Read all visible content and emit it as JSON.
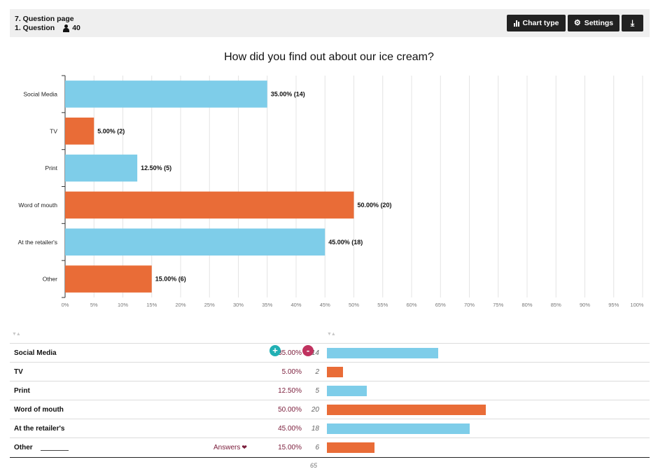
{
  "header": {
    "page_label": "7. Question page",
    "question_label": "1. Question",
    "respondents": "40",
    "buttons": {
      "chart_type": "Chart type",
      "settings": "Settings"
    }
  },
  "colors": {
    "blue": "#7ecde9",
    "orange": "#e96c37",
    "accent_pct": "#7a1c3a",
    "plus": "#21b0b4",
    "minus": "#c0325f"
  },
  "chart_data": {
    "type": "bar",
    "orientation": "horizontal",
    "title": "How did you find out about our ice cream?",
    "categories": [
      "Social Media",
      "TV",
      "Print",
      "Word of mouth",
      "At the retailer's",
      "Other"
    ],
    "values": [
      35,
      5,
      12.5,
      50,
      45,
      15
    ],
    "counts": [
      14,
      2,
      5,
      20,
      18,
      6
    ],
    "data_labels": [
      "35.00% (14)",
      "5.00% (2)",
      "12.50% (5)",
      "50.00% (20)",
      "45.00% (18)",
      "15.00% (6)"
    ],
    "bar_colors": [
      "blue",
      "orange",
      "blue",
      "orange",
      "blue",
      "orange"
    ],
    "xlim": [
      0,
      100
    ],
    "xticks": [
      "0%",
      "5%",
      "10%",
      "15%",
      "20%",
      "25%",
      "30%",
      "35%",
      "40%",
      "45%",
      "50%",
      "55%",
      "60%",
      "65%",
      "70%",
      "75%",
      "80%",
      "85%",
      "90%",
      "95%",
      "100%"
    ],
    "grid": true
  },
  "table": {
    "rows": [
      {
        "label": "Social Media",
        "pct": "35.00%",
        "count": "14",
        "value": 35
      },
      {
        "label": "TV",
        "pct": "5.00%",
        "count": "2",
        "value": 5
      },
      {
        "label": "Print",
        "pct": "12.50%",
        "count": "5",
        "value": 12.5
      },
      {
        "label": "Word of mouth",
        "pct": "50.00%",
        "count": "20",
        "value": 50
      },
      {
        "label": "At the retailer's",
        "pct": "45.00%",
        "count": "18",
        "value": 45
      },
      {
        "label": "Other",
        "pct": "15.00%",
        "count": "6",
        "value": 15
      }
    ],
    "answers_label": "Answers",
    "total": "65",
    "plus_symbol": "+",
    "minus_symbol": "-"
  }
}
